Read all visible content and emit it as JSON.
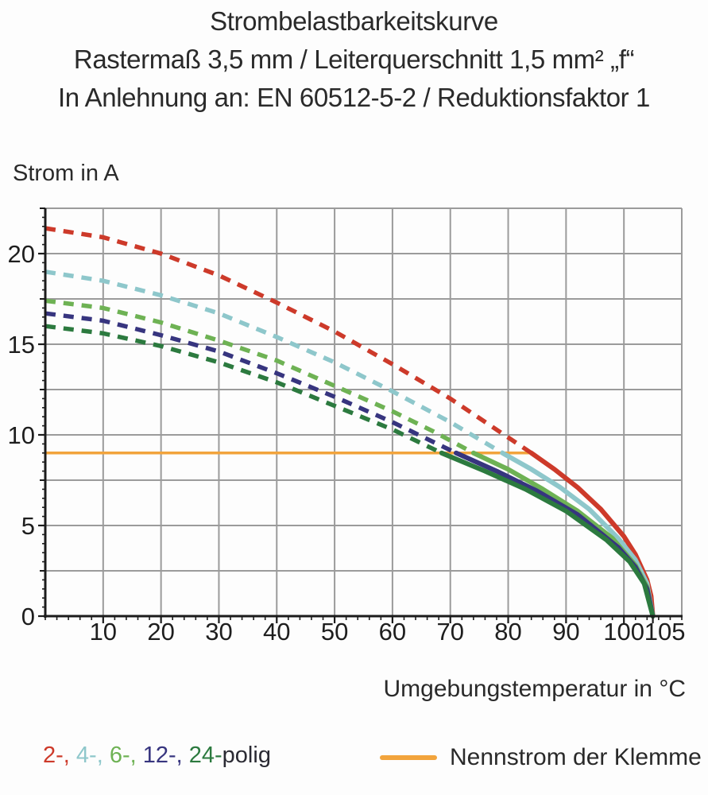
{
  "header": {
    "line1": "Strombelastbarkeitskurve",
    "line2": "Rastermaß 3,5 mm / Leiterquerschnitt 1,5 mm² „f“",
    "line3": "In Anlehnung an: EN 60512-5-2 / Reduktionsfaktor 1"
  },
  "legend": {
    "items": [
      {
        "label": "2-, ",
        "color": "#cd3a2a"
      },
      {
        "label": "4-, ",
        "color": "#8ec7cb"
      },
      {
        "label": "6-, ",
        "color": "#6eb254"
      },
      {
        "label": "12-, ",
        "color": "#37357f"
      },
      {
        "label": "24-",
        "color": "#2c7a3f"
      },
      {
        "label": "polig",
        "color": "#2a2a33"
      }
    ],
    "rated_label": "Nennstrom der Klemme",
    "rated_color": "#f2a43c"
  },
  "chart_data": {
    "type": "line",
    "title": "Strombelastbarkeitskurve",
    "xlabel": "Umgebungstemperatur in °C",
    "ylabel": "Strom in A",
    "xlim": [
      0,
      110
    ],
    "ylim": [
      0,
      22.5
    ],
    "grid": {
      "x_step": 10,
      "y_step": 2.5,
      "color": "#9b9b9b",
      "on": true
    },
    "axis_color": "#1c1c1c",
    "x_minor_step": 2,
    "y_minor_step": 0.5,
    "x_ticks": [
      {
        "v": 10,
        "label": "10"
      },
      {
        "v": 20,
        "label": "20"
      },
      {
        "v": 30,
        "label": "30"
      },
      {
        "v": 40,
        "label": "40"
      },
      {
        "v": 50,
        "label": "50"
      },
      {
        "v": 60,
        "label": "60"
      },
      {
        "v": 70,
        "label": "70"
      },
      {
        "v": 80,
        "label": "80"
      },
      {
        "v": 90,
        "label": "90"
      },
      {
        "v": 100,
        "label": "100"
      },
      {
        "v": 105,
        "label": "105",
        "dx": 15
      }
    ],
    "y_ticks": [
      {
        "v": 0,
        "label": "0"
      },
      {
        "v": 5,
        "label": "5"
      },
      {
        "v": 10,
        "label": "10"
      },
      {
        "v": 15,
        "label": "15"
      },
      {
        "v": 20,
        "label": "20"
      }
    ],
    "rated_current": {
      "value": 9,
      "label": "Nennstrom der Klemme",
      "color": "#f2a43c",
      "x_end": 84
    },
    "series": [
      {
        "name": "2-polig",
        "color": "#cd3a2a",
        "style": "dashed-then-solid",
        "solid_from": 84,
        "points": [
          [
            0,
            21.4
          ],
          [
            10,
            20.9
          ],
          [
            20,
            20.0
          ],
          [
            30,
            18.8
          ],
          [
            40,
            17.3
          ],
          [
            50,
            15.7
          ],
          [
            60,
            13.9
          ],
          [
            70,
            12.0
          ],
          [
            77,
            10.5
          ],
          [
            84,
            9.0
          ],
          [
            88,
            8.1
          ],
          [
            92,
            7.1
          ],
          [
            96,
            5.9
          ],
          [
            100,
            4.4
          ],
          [
            102,
            3.4
          ],
          [
            104,
            2.0
          ],
          [
            104.7,
            1.1
          ],
          [
            105,
            0
          ]
        ]
      },
      {
        "name": "4-polig",
        "color": "#8ec7cb",
        "style": "dashed-then-solid",
        "solid_from": 79,
        "points": [
          [
            0,
            19.0
          ],
          [
            10,
            18.5
          ],
          [
            20,
            17.7
          ],
          [
            30,
            16.7
          ],
          [
            40,
            15.4
          ],
          [
            50,
            14.0
          ],
          [
            60,
            12.4
          ],
          [
            70,
            10.7
          ],
          [
            79,
            9.0
          ],
          [
            84,
            8.1
          ],
          [
            89,
            7.1
          ],
          [
            94,
            5.9
          ],
          [
            99,
            4.3
          ],
          [
            102,
            3.1
          ],
          [
            104,
            1.8
          ],
          [
            105,
            0
          ]
        ]
      },
      {
        "name": "6-polig",
        "color": "#6eb254",
        "style": "dashed-then-solid",
        "solid_from": 74,
        "points": [
          [
            0,
            17.4
          ],
          [
            10,
            17.0
          ],
          [
            20,
            16.2
          ],
          [
            30,
            15.2
          ],
          [
            40,
            14.1
          ],
          [
            50,
            12.7
          ],
          [
            60,
            11.3
          ],
          [
            67,
            10.2
          ],
          [
            74,
            9.0
          ],
          [
            80,
            8.1
          ],
          [
            86,
            7.0
          ],
          [
            92,
            5.8
          ],
          [
            98,
            4.3
          ],
          [
            102,
            2.8
          ],
          [
            104,
            1.6
          ],
          [
            105,
            0
          ]
        ]
      },
      {
        "name": "12-polig",
        "color": "#37357f",
        "style": "dashed-then-solid",
        "solid_from": 71,
        "points": [
          [
            0,
            16.7
          ],
          [
            10,
            16.3
          ],
          [
            20,
            15.5
          ],
          [
            30,
            14.6
          ],
          [
            40,
            13.4
          ],
          [
            50,
            12.1
          ],
          [
            60,
            10.7
          ],
          [
            71,
            9.0
          ],
          [
            78,
            8.0
          ],
          [
            85,
            6.9
          ],
          [
            92,
            5.6
          ],
          [
            99,
            3.8
          ],
          [
            102,
            2.7
          ],
          [
            104,
            1.5
          ],
          [
            105,
            0
          ]
        ]
      },
      {
        "name": "24-polig",
        "color": "#2c7a3f",
        "style": "dashed-then-solid",
        "solid_from": 68.5,
        "points": [
          [
            0,
            16.0
          ],
          [
            10,
            15.6
          ],
          [
            20,
            14.9
          ],
          [
            30,
            14.0
          ],
          [
            40,
            12.9
          ],
          [
            50,
            11.6
          ],
          [
            60,
            10.3
          ],
          [
            68.5,
            9.0
          ],
          [
            76,
            8.0
          ],
          [
            83,
            7.0
          ],
          [
            90,
            5.8
          ],
          [
            97,
            4.2
          ],
          [
            101,
            3.0
          ],
          [
            103.5,
            1.8
          ],
          [
            105,
            0
          ]
        ]
      }
    ]
  }
}
